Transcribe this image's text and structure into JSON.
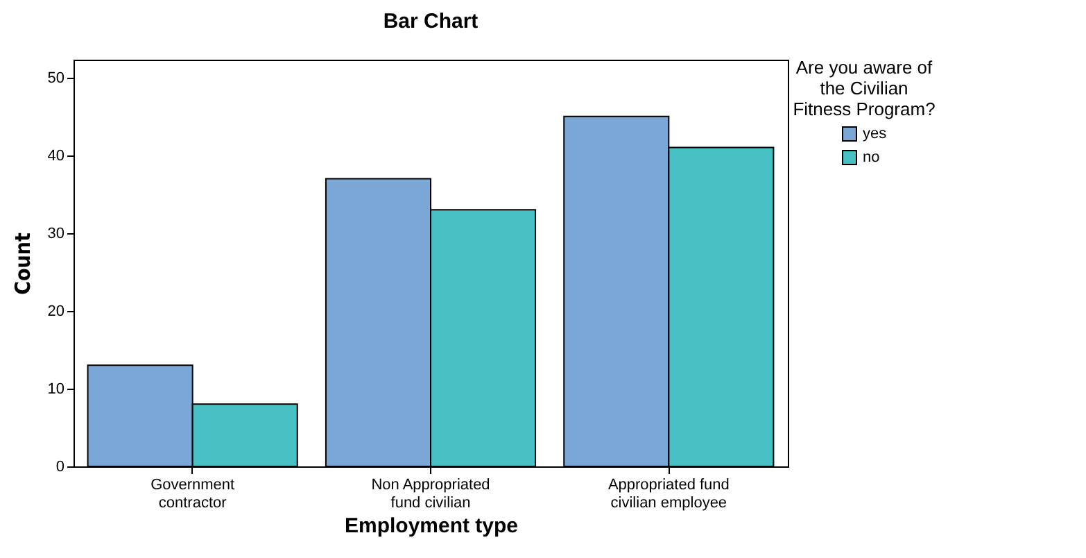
{
  "chart_data": {
    "type": "bar",
    "title": "Bar Chart",
    "xlabel": "Employment type",
    "ylabel": "Count",
    "legend_title": "Are you aware of the Civilian Fitness Program?",
    "categories": [
      "Government contractor",
      "Non Appropriated fund civilian",
      "Appropriated fund civilian employee"
    ],
    "series": [
      {
        "name": "yes",
        "color": "#7ba7d6",
        "values": [
          13,
          37,
          45
        ]
      },
      {
        "name": "no",
        "color": "#48c1c4",
        "values": [
          8,
          33,
          41
        ]
      }
    ],
    "ylim": [
      0,
      52.3
    ],
    "yticks": [
      0,
      10,
      20,
      30,
      40,
      50
    ],
    "grid": false,
    "legend": "top right"
  }
}
